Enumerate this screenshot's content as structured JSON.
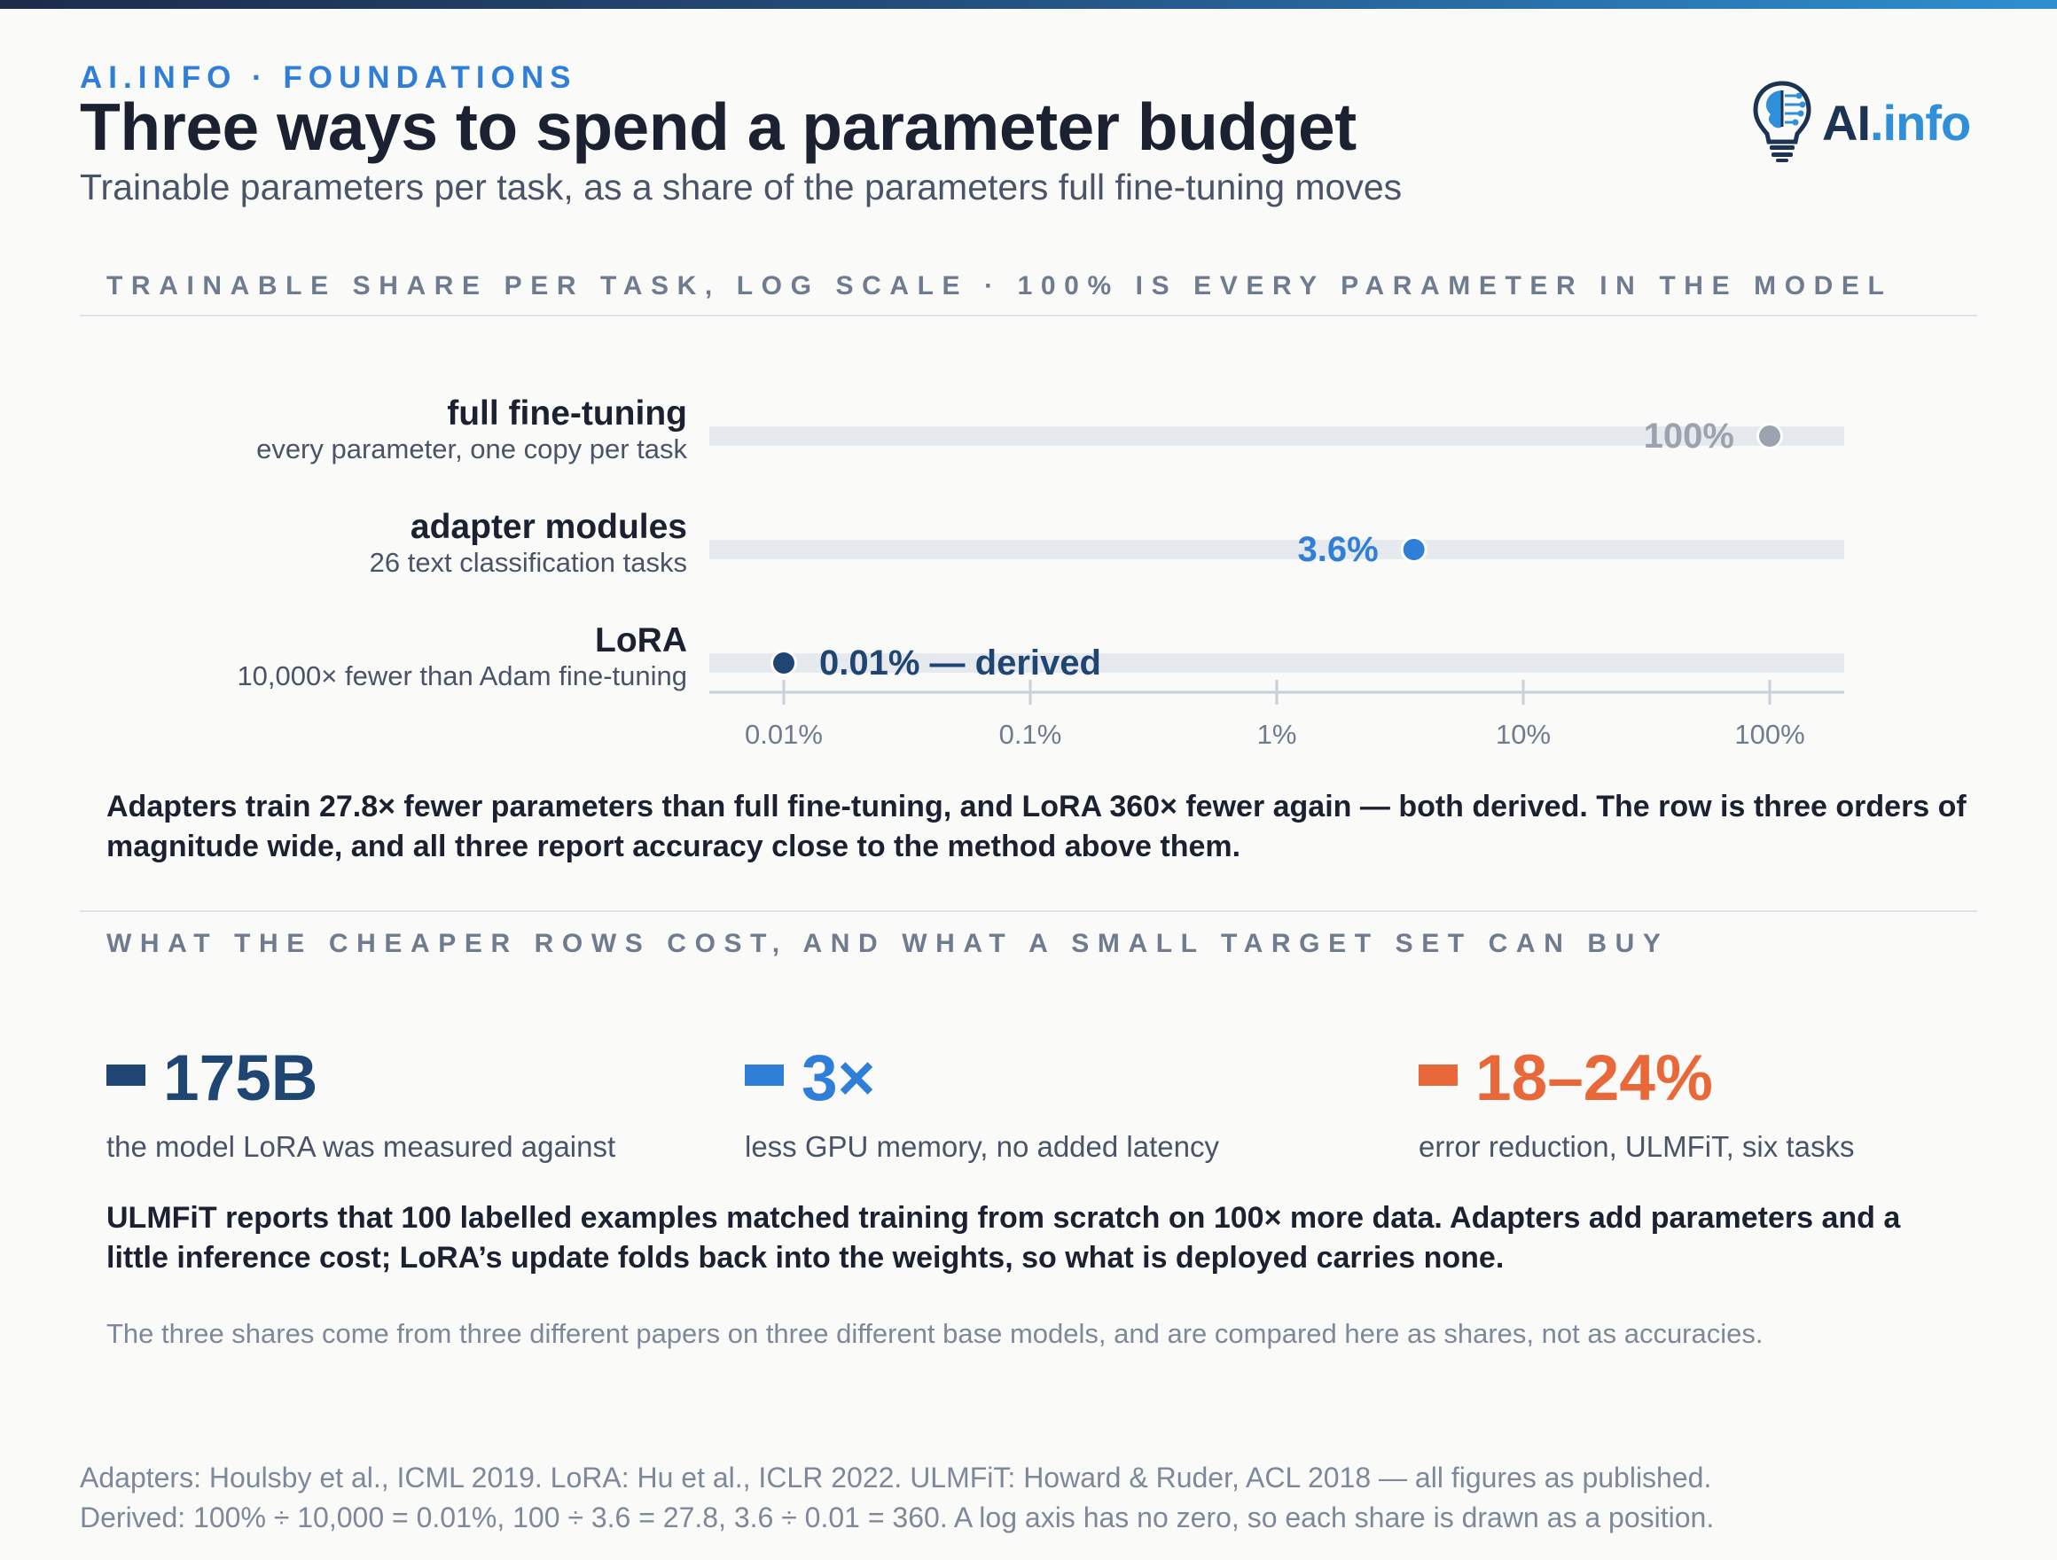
{
  "header": {
    "kicker": "AI.INFO · FOUNDATIONS",
    "title": "Three ways to spend a parameter budget",
    "subtitle": "Trainable parameters per task, as a share of the parameters full fine-tuning moves",
    "logo_ai": "AI",
    "logo_info": ".info"
  },
  "section1_heading": "TRAINABLE SHARE PER TASK, LOG SCALE · 100% IS EVERY PARAMETER IN THE MODEL",
  "chart_data": {
    "type": "scatter",
    "scale": "log",
    "xlim": [
      0.005,
      180
    ],
    "ticks": [
      {
        "value": 0.01,
        "label": "0.01%"
      },
      {
        "value": 0.1,
        "label": "0.1%"
      },
      {
        "value": 1,
        "label": "1%"
      },
      {
        "value": 10,
        "label": "10%"
      },
      {
        "value": 100,
        "label": "100%"
      }
    ],
    "rows": [
      {
        "name": "full fine-tuning",
        "sub": "every parameter, one copy per task",
        "value": 100,
        "label": "100%",
        "color": "#9aa3ae",
        "label_side": "left"
      },
      {
        "name": "adapter modules",
        "sub": "26 text classification tasks",
        "value": 3.6,
        "label": "3.6%",
        "color": "#2f7fd8",
        "label_side": "left"
      },
      {
        "name": "LoRA",
        "sub": "10,000× fewer than Adam fine-tuning",
        "value": 0.01,
        "label": "0.01% — derived",
        "color": "#1f4673",
        "label_side": "right"
      }
    ]
  },
  "takeaway": "Adapters train 27.8× fewer parameters than full fine-tuning, and LoRA 360× fewer again — both derived. The row is three orders of magnitude wide, and all three report accuracy close to the method above them.",
  "section2_heading": "WHAT THE CHEAPER ROWS COST, AND WHAT A SMALL TARGET SET CAN BUY",
  "stats": [
    {
      "value": "175B",
      "label": "the model LoRA was measured against",
      "color": "#1f4673"
    },
    {
      "value": "3×",
      "label": "less GPU memory, no added latency",
      "color": "#2f7fd8"
    },
    {
      "value": "18–24%",
      "label": "error reduction, ULMFiT, six tasks",
      "color": "#e8683a"
    }
  ],
  "body": "ULMFiT reports that 100 labelled examples matched training from scratch on 100× more data. Adapters add parameters and a little inference cost; LoRA’s update folds back into the weights, so what is deployed carries none.",
  "caveat": "The three shares come from three different papers on three different base models, and are compared here as shares, not as accuracies.",
  "sources": [
    "Adapters: Houlsby et al., ICML 2019. LoRA: Hu et al., ICLR 2022. ULMFiT: Howard & Ruder, ACL 2018 — all figures as published.",
    "Derived: 100% ÷ 10,000 = 0.01%, 100 ÷ 3.6 = 27.8, 3.6 ÷ 0.01 = 360. A log axis has no zero, so each share is drawn as a position."
  ]
}
